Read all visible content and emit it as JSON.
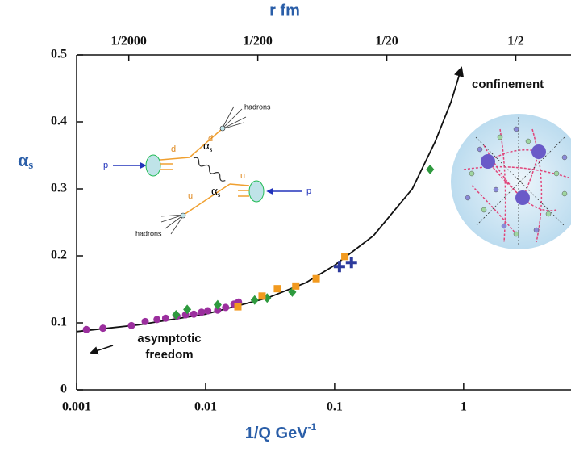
{
  "chart_data": {
    "type": "scatter",
    "xscale": "log",
    "title": "r fm",
    "xlabel": "1/Q GeV",
    "xlabel_sup": "-1",
    "ylabel": "α",
    "ylabel_sub": "s",
    "xlim": [
      0.001,
      6.8
    ],
    "xticks": [
      0.001,
      0.01,
      0.1,
      1
    ],
    "x2lim": [
      0.000197,
      1.34
    ],
    "x2ticks": [
      {
        "value": 0.0005,
        "label": "1/2000"
      },
      {
        "value": 0.005,
        "label": "1/200"
      },
      {
        "value": 0.05,
        "label": "1/20"
      },
      {
        "value": 0.5,
        "label": "1/2"
      }
    ],
    "ylim": [
      0,
      0.5
    ],
    "yticks": [
      0,
      0.1,
      0.2,
      0.3,
      0.4,
      0.5
    ],
    "series": [
      {
        "marker": "circle",
        "color": "#9b2f9e",
        "x": [
          0.00119,
          0.0016,
          0.00266,
          0.0034,
          0.0042,
          0.0049,
          0.006,
          0.007,
          0.0081,
          0.0093,
          0.0104,
          0.0124,
          0.0143,
          0.0166,
          0.018
        ],
        "values": [
          0.09,
          0.092,
          0.096,
          0.102,
          0.105,
          0.107,
          0.11,
          0.112,
          0.113,
          0.116,
          0.118,
          0.119,
          0.123,
          0.128,
          0.131
        ]
      },
      {
        "marker": "diamond",
        "color": "#2e9a3e",
        "x": [
          0.0059,
          0.0072,
          0.0124,
          0.024,
          0.03,
          0.047,
          0.55
        ],
        "values": [
          0.112,
          0.12,
          0.127,
          0.134,
          0.137,
          0.146,
          0.329
        ]
      },
      {
        "marker": "square",
        "color": "#f29a1f",
        "x": [
          0.0178,
          0.0274,
          0.036,
          0.05,
          0.072,
          0.12
        ],
        "values": [
          0.124,
          0.14,
          0.151,
          0.155,
          0.166,
          0.199
        ]
      },
      {
        "marker": "cross",
        "color": "#2d3a9c",
        "x": [
          0.109,
          0.135
        ],
        "values": [
          0.184,
          0.19
        ]
      }
    ],
    "curve": {
      "color": "#111111",
      "x": [
        0.001,
        0.003,
        0.01,
        0.03,
        0.06,
        0.1,
        0.2,
        0.4,
        0.6,
        0.8,
        0.96
      ],
      "values": [
        0.087,
        0.097,
        0.113,
        0.137,
        0.16,
        0.186,
        0.23,
        0.3,
        0.37,
        0.43,
        0.48
      ]
    },
    "annotations": {
      "confinement": "confinement",
      "freedom": [
        "asymptotic",
        "freedom"
      ]
    },
    "inset": {
      "p": "p",
      "d": "d",
      "u": "u",
      "alpha": "α",
      "s": "s",
      "hadrons": "hadrons"
    }
  }
}
